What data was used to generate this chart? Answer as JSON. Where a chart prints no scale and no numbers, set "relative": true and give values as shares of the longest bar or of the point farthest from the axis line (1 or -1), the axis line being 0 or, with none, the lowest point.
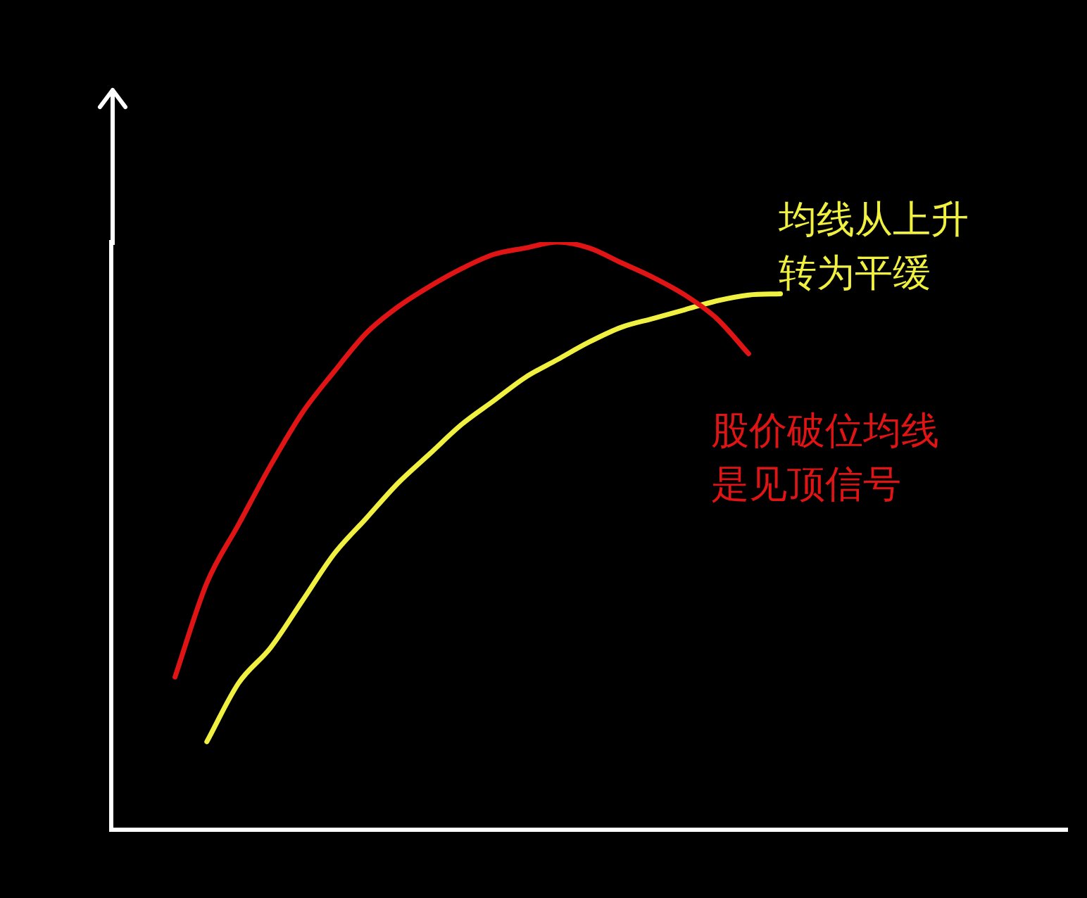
{
  "chart_data": {
    "type": "line",
    "relative": true,
    "grid": false,
    "legend": false,
    "marker": "none",
    "line_style": "solid",
    "categories": [
      null,
      null,
      null,
      null,
      null,
      null,
      null,
      null,
      null,
      null,
      null,
      null,
      null,
      null,
      null,
      null,
      null,
      null,
      null,
      null,
      null,
      null,
      null,
      null,
      null,
      null,
      null,
      null,
      null,
      null,
      null
    ],
    "series": [
      {
        "color": "#e01414",
        "values": [
          null,
          null,
          0.26,
          0.42,
          0.52,
          0.62,
          0.71,
          0.78,
          0.845,
          0.89,
          0.925,
          0.955,
          0.979,
          0.99,
          1,
          0.99,
          0.965,
          0.94,
          0.91,
          0.87,
          0.81,
          null,
          null,
          null,
          null,
          null,
          null,
          null,
          null,
          null,
          null
        ]
      },
      {
        "color": "#f0f040",
        "values": [
          null,
          null,
          null,
          0.15,
          0.25,
          0.31,
          0.39,
          0.47,
          0.53,
          0.59,
          0.64,
          0.69,
          0.73,
          0.77,
          0.8,
          0.83,
          0.855,
          0.87,
          0.885,
          0.9,
          0.91,
          0.912,
          null,
          null,
          null,
          null,
          null,
          null,
          null,
          null,
          null
        ]
      }
    ],
    "annotations": [
      "股价破位均线是见顶信号",
      "均线从上升转为平缓"
    ]
  }
}
